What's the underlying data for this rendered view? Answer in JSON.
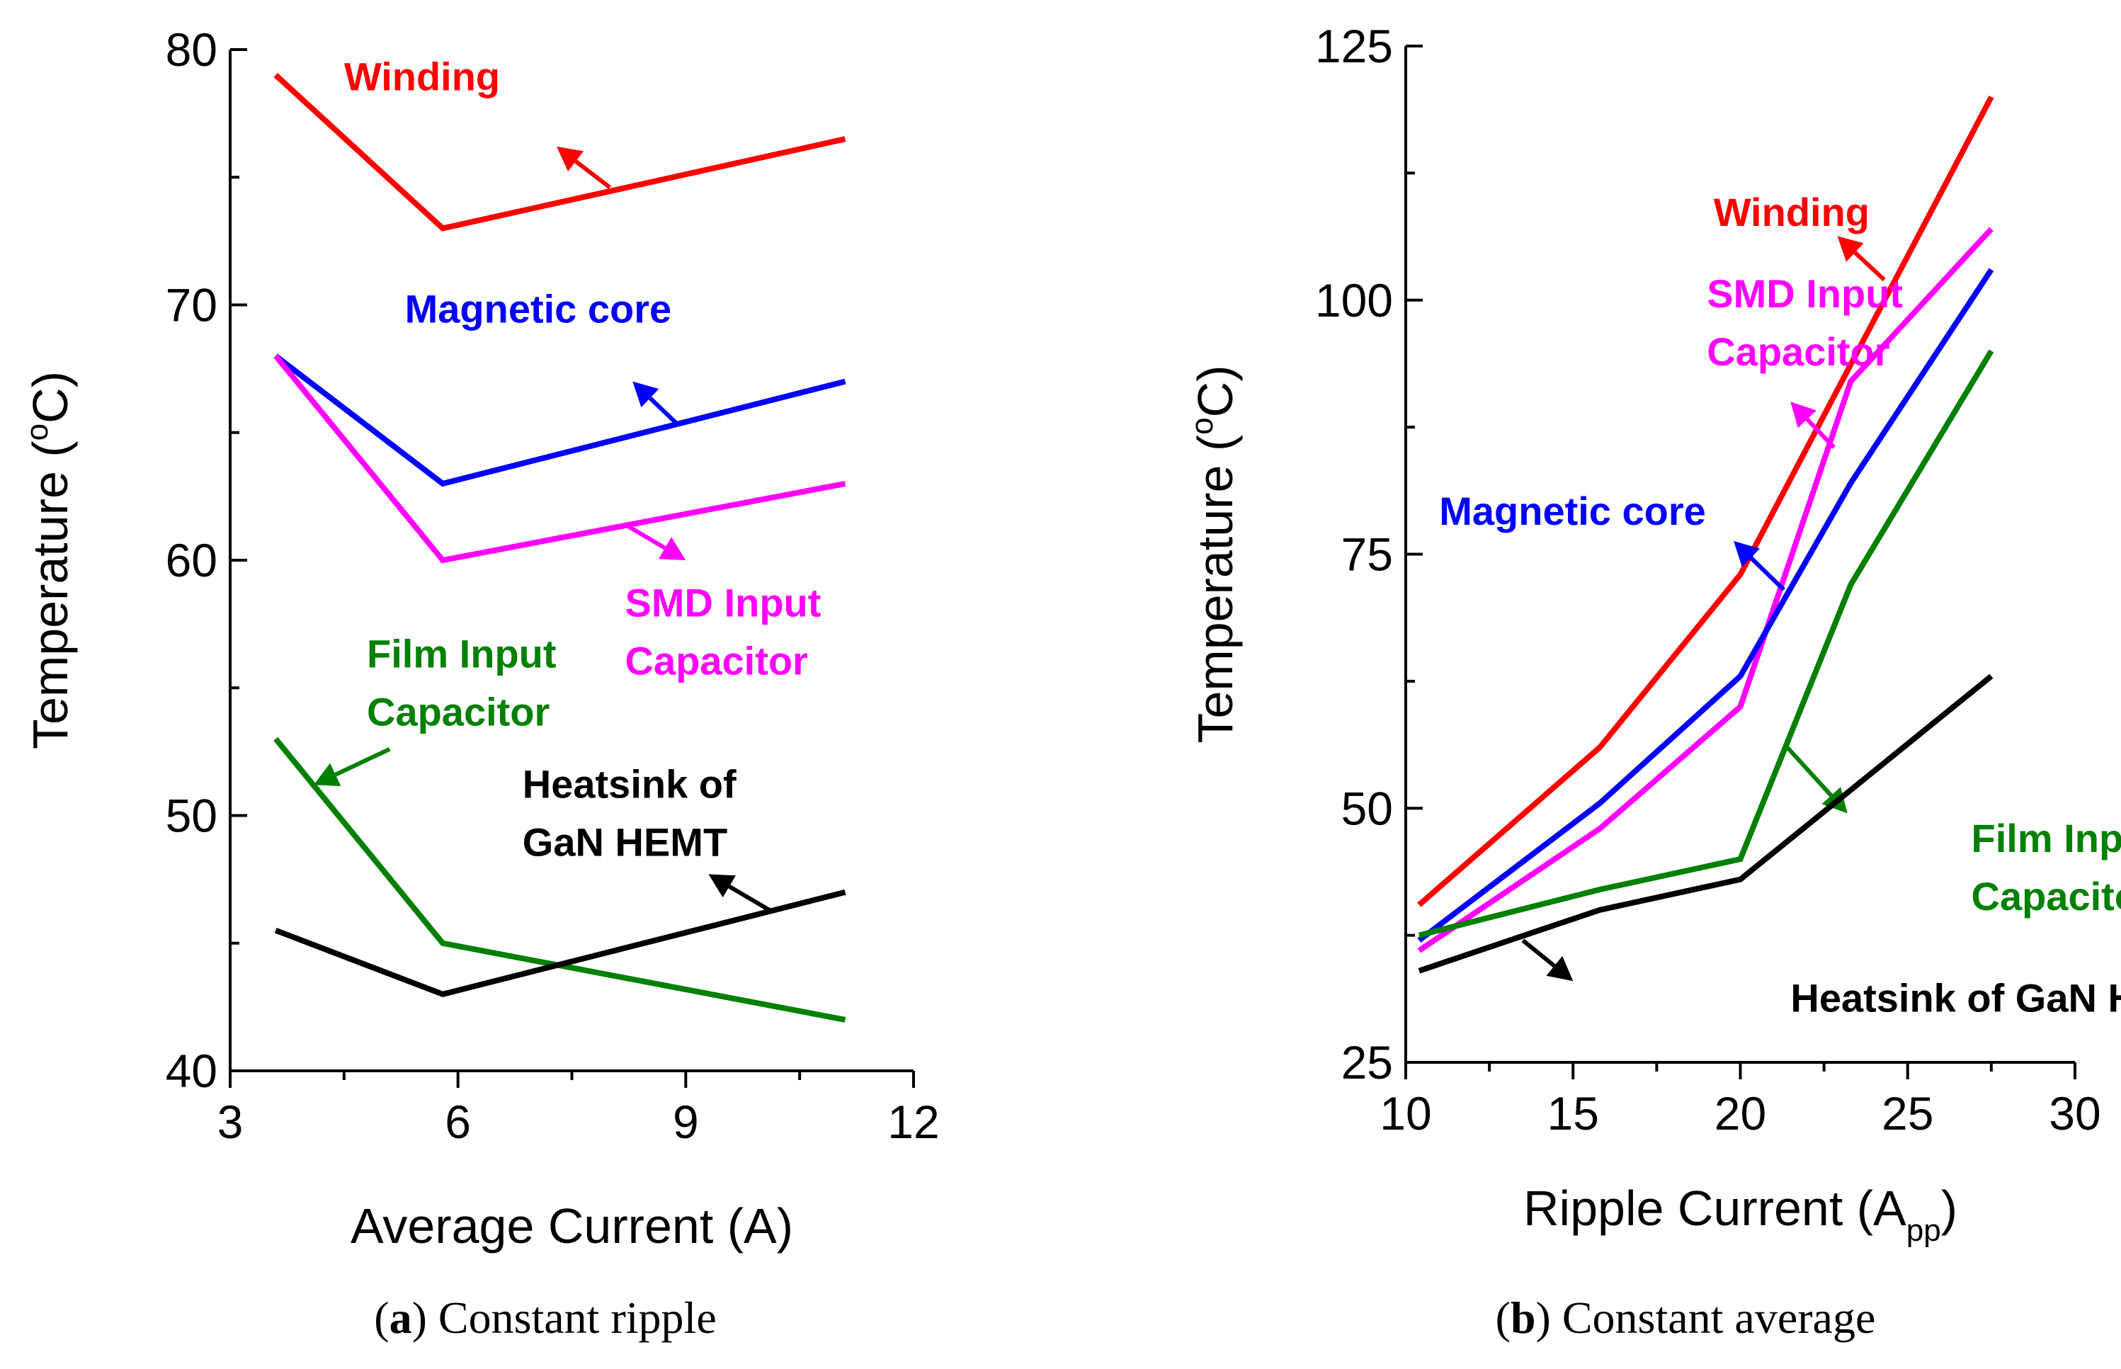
{
  "chart_data": [
    {
      "type": "line",
      "caption": {
        "letter": "a",
        "text": " Constant ripple"
      },
      "xlabel": "Average Current (A)",
      "ylabel": {
        "main": "Temperature (",
        "sup": "o",
        "unit": "C)"
      },
      "xlim": [
        3,
        12
      ],
      "ylim": [
        40,
        80
      ],
      "xticks": [
        "3",
        "6",
        "9",
        "12"
      ],
      "xtick_values": [
        3,
        6,
        9,
        12
      ],
      "xminor": [
        4.5,
        7.5,
        10.5
      ],
      "yticks": [
        "40",
        "50",
        "60",
        "70",
        "80"
      ],
      "ytick_values": [
        40,
        50,
        60,
        70,
        80
      ],
      "yminor": [
        45,
        55,
        65,
        75
      ],
      "series": [
        {
          "name": "Winding",
          "label_lines": [
            "Winding"
          ],
          "color": "#ff0000",
          "x": [
            3.6,
            5.8,
            11.1
          ],
          "y": [
            79,
            73,
            76.5
          ],
          "label_at": [
            4.5,
            78.4
          ],
          "arrow": [
            [
              8.0,
              74.6
            ],
            [
              7.3,
              76.2
            ]
          ]
        },
        {
          "name": "Magnetic core",
          "label_lines": [
            "Magnetic core"
          ],
          "color": "#0000ff",
          "x": [
            3.6,
            5.8,
            11.1
          ],
          "y": [
            68,
            63,
            67
          ],
          "label_at": [
            5.3,
            69.3
          ],
          "arrow": [
            [
              8.9,
              65.3
            ],
            [
              8.3,
              67.0
            ]
          ]
        },
        {
          "name": "SMD Input Capacitor",
          "label_lines": [
            "SMD Input",
            "Capacitor"
          ],
          "color": "#ff00ff",
          "x": [
            3.6,
            5.8,
            11.1
          ],
          "y": [
            68,
            60,
            63
          ],
          "label_at": [
            8.2,
            57.8
          ],
          "arrow": [
            [
              8.2,
              61.4
            ],
            [
              9.0,
              60.0
            ]
          ]
        },
        {
          "name": "Film Input Capacitor",
          "label_lines": [
            "Film Input",
            "Capacitor"
          ],
          "color": "#008000",
          "x": [
            3.6,
            5.8,
            11.1
          ],
          "y": [
            53,
            45,
            42
          ],
          "label_at": [
            4.8,
            55.8
          ],
          "arrow": [
            [
              5.1,
              52.6
            ],
            [
              4.1,
              51.2
            ]
          ]
        },
        {
          "name": "Heatsink of GaN HEMT",
          "label_lines": [
            "Heatsink of",
            "GaN HEMT"
          ],
          "color": "#000000",
          "x": [
            3.6,
            5.8,
            11.1
          ],
          "y": [
            45.5,
            43,
            47
          ],
          "label_at": [
            6.85,
            50.7
          ],
          "arrow": [
            [
              10.1,
              46.3
            ],
            [
              9.3,
              47.7
            ]
          ]
        }
      ]
    },
    {
      "type": "line",
      "caption": {
        "letter": "b",
        "text": " Constant average"
      },
      "xlabel": {
        "main": "Ripple Current (A",
        "sub": "pp",
        "end": ")"
      },
      "ylabel": {
        "main": "Temperature (",
        "sup": "o",
        "unit": "C)"
      },
      "xlim": [
        10,
        30
      ],
      "ylim": [
        25,
        125
      ],
      "xticks": [
        "10",
        "15",
        "20",
        "25",
        "30"
      ],
      "xtick_values": [
        10,
        15,
        20,
        25,
        30
      ],
      "xminor": [
        12.5,
        17.5,
        22.5,
        27.5
      ],
      "yticks": [
        "25",
        "50",
        "75",
        "100",
        "125"
      ],
      "ytick_values": [
        25,
        50,
        75,
        100,
        125
      ],
      "yminor": [
        37.5,
        62.5,
        87.5,
        112.5
      ],
      "series": [
        {
          "name": "Winding",
          "label_lines": [
            "Winding"
          ],
          "color": "#ff0000",
          "x": [
            10.4,
            15.8,
            20.0,
            27.5
          ],
          "y": [
            40.5,
            56.0,
            73.0,
            120.0
          ],
          "label_at": [
            19.2,
            107.3
          ],
          "arrow": [
            [
              24.3,
              102.0
            ],
            [
              22.9,
              106.3
            ]
          ]
        },
        {
          "name": "SMD Input Capacitor",
          "label_lines": [
            "SMD Input",
            "Capacitor"
          ],
          "color": "#ff00ff",
          "x": [
            10.4,
            15.8,
            20.0,
            23.3,
            27.5
          ],
          "y": [
            36.0,
            48.0,
            60.0,
            92.0,
            107.0
          ],
          "label_at": [
            19.0,
            99.3
          ],
          "arrow": [
            [
              22.8,
              85.5
            ],
            [
              21.5,
              90.0
            ]
          ]
        },
        {
          "name": "Magnetic core",
          "label_lines": [
            "Magnetic core"
          ],
          "color": "#0000ff",
          "x": [
            10.4,
            15.8,
            20.0,
            23.3,
            27.5
          ],
          "y": [
            37.0,
            50.5,
            63.0,
            82.0,
            103.0
          ],
          "label_at": [
            11.0,
            77.9
          ],
          "arrow": [
            [
              21.3,
              71.5
            ],
            [
              19.8,
              76.3
            ]
          ]
        },
        {
          "name": "Film Input Capacitor",
          "label_lines": [
            "Film Input",
            "Capacitor"
          ],
          "color": "#008000",
          "x": [
            10.4,
            15.8,
            20.0,
            23.3,
            27.5
          ],
          "y": [
            37.5,
            42.0,
            45.0,
            72.0,
            95.0
          ],
          "label_at": [
            26.9,
            45.7
          ],
          "arrow": [
            [
              21.4,
              56.0
            ],
            [
              23.2,
              49.5
            ]
          ]
        },
        {
          "name": "Heatsink of GaN HEMT",
          "label_lines": [
            "Heatsink of GaN HEMT"
          ],
          "color": "#000000",
          "x": [
            10.4,
            15.8,
            20.0,
            27.5
          ],
          "y": [
            34.0,
            40.0,
            43.0,
            63.0
          ],
          "label_at": [
            21.5,
            30.0
          ],
          "arrow": [
            [
              13.5,
              37.0
            ],
            [
              15.0,
              33.0
            ]
          ]
        }
      ]
    }
  ]
}
